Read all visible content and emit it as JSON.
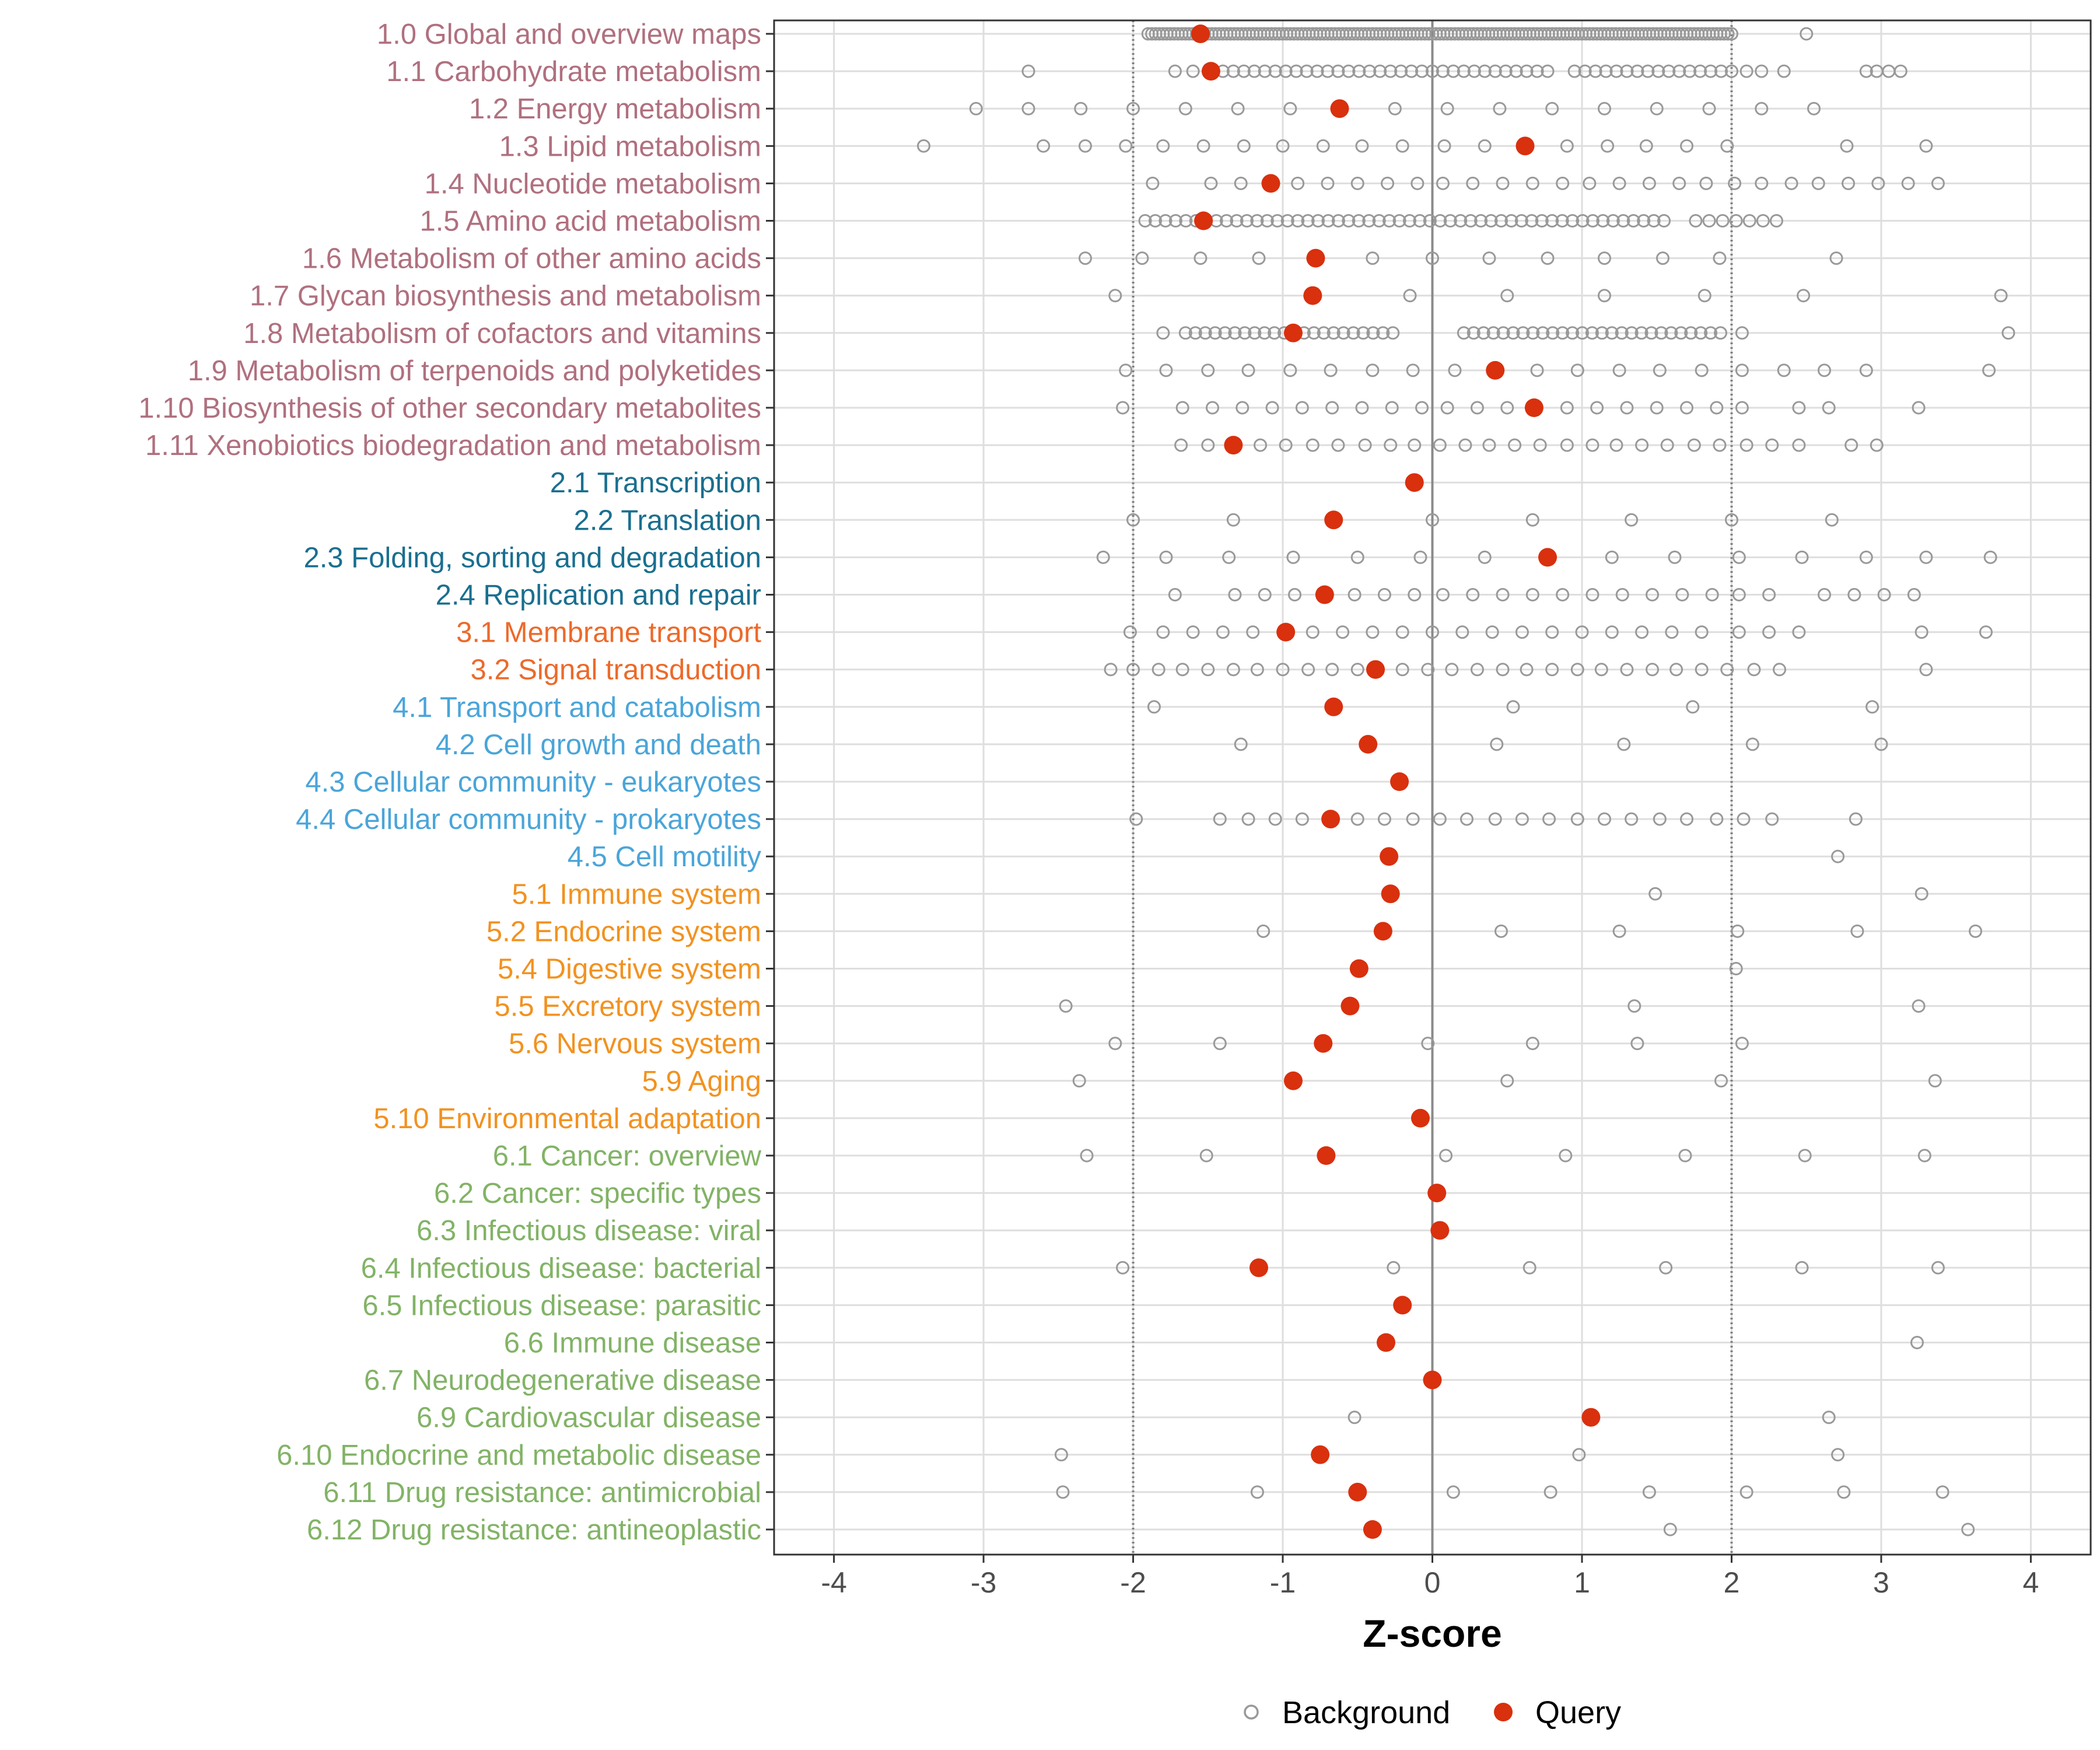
{
  "chart_data": {
    "type": "scatter",
    "xlabel": "Z-score",
    "xlim": [
      -4.4,
      4.4
    ],
    "xticks": [
      -4,
      -3,
      -2,
      -1,
      0,
      1,
      2,
      3,
      4
    ],
    "xtick_labels": [
      "-4",
      "-3",
      "-2",
      "-1",
      "0",
      "1",
      "2",
      "3",
      "4"
    ],
    "reference_lines": [
      -2,
      0,
      2
    ],
    "grid": true,
    "legend": {
      "position": "bottom",
      "items": [
        {
          "name": "Background",
          "shape": "open-circle",
          "color": "#999999"
        },
        {
          "name": "Query",
          "shape": "filled-circle",
          "color": "#d9300e"
        }
      ]
    },
    "group_colors": {
      "1": "#b0707f",
      "2": "#1a6f8f",
      "3": "#ec6a2a",
      "4": "#4aa5d9",
      "5": "#f29220",
      "6": "#82b366"
    },
    "categories": [
      {
        "label": "1.0 Global and overview maps",
        "group": "1",
        "query": -1.55,
        "background": {
          "dense": [
            [
              -1.9,
              2.0,
              0.025
            ]
          ],
          "points": [
            2.5
          ]
        }
      },
      {
        "label": "1.1 Carbohydrate metabolism",
        "group": "1",
        "query": -1.48,
        "background": {
          "dense": [
            [
              -1.4,
              0.8,
              0.07
            ],
            [
              0.95,
              2.0,
              0.07
            ]
          ],
          "points": [
            -2.7,
            -1.72,
            -1.6,
            2.1,
            2.2,
            2.35,
            2.9,
            2.97,
            3.05,
            3.13
          ]
        }
      },
      {
        "label": "1.2 Energy metabolism",
        "group": "1",
        "query": -0.62,
        "background": {
          "dense": [],
          "points": [
            -3.05,
            -2.7,
            -2.35,
            -2.0,
            -1.65,
            -1.3,
            -0.95,
            -0.25,
            0.1,
            0.45,
            0.8,
            1.15,
            1.5,
            1.85,
            2.2,
            2.55
          ]
        }
      },
      {
        "label": "1.3 Lipid metabolism",
        "group": "1",
        "query": 0.62,
        "background": {
          "dense": [],
          "points": [
            -3.4,
            -2.6,
            -2.32,
            -2.05,
            -1.8,
            -1.53,
            -1.26,
            -1.0,
            -0.73,
            -0.47,
            -0.2,
            0.08,
            0.35,
            0.9,
            1.17,
            1.43,
            1.7,
            1.97,
            2.77,
            3.3
          ]
        }
      },
      {
        "label": "1.4 Nucleotide metabolism",
        "group": "1",
        "query": -1.08,
        "background": {
          "dense": [],
          "points": [
            -1.87,
            -1.48,
            -1.28,
            -0.9,
            -0.7,
            -0.5,
            -0.3,
            -0.1,
            0.07,
            0.27,
            0.47,
            0.67,
            0.87,
            1.05,
            1.25,
            1.45,
            1.65,
            1.83,
            2.02,
            2.2,
            2.4,
            2.58,
            2.78,
            2.98,
            3.18,
            3.38
          ]
        }
      },
      {
        "label": "1.5 Amino acid metabolism",
        "group": "1",
        "query": -1.53,
        "background": {
          "dense": [
            [
              -1.92,
              1.6,
              0.068
            ],
            [
              1.76,
              2.3,
              0.09
            ]
          ],
          "points": []
        }
      },
      {
        "label": "1.6 Metabolism of other amino acids",
        "group": "1",
        "query": -0.78,
        "background": {
          "dense": [],
          "points": [
            -2.32,
            -1.94,
            -1.55,
            -1.16,
            -0.4,
            0.0,
            0.38,
            0.77,
            1.15,
            1.54,
            1.92,
            2.7
          ]
        }
      },
      {
        "label": "1.7 Glycan biosynthesis and metabolism",
        "group": "1",
        "query": -0.8,
        "background": {
          "dense": [],
          "points": [
            -2.12,
            -0.15,
            0.5,
            1.15,
            1.82,
            2.48,
            3.8
          ]
        }
      },
      {
        "label": "1.8 Metabolism of cofactors and vitamins",
        "group": "1",
        "query": -0.93,
        "background": {
          "dense": [
            [
              -1.65,
              -0.25,
              0.066
            ],
            [
              0.21,
              1.97,
              0.066
            ]
          ],
          "points": [
            -1.8,
            2.07,
            3.85
          ]
        }
      },
      {
        "label": "1.9 Metabolism of terpenoids and polyketides",
        "group": "1",
        "query": 0.42,
        "background": {
          "dense": [],
          "points": [
            -2.05,
            -1.78,
            -1.5,
            -1.23,
            -0.95,
            -0.68,
            -0.4,
            -0.13,
            0.15,
            0.7,
            0.97,
            1.25,
            1.52,
            1.8,
            2.07,
            2.35,
            2.62,
            2.9,
            3.72
          ]
        }
      },
      {
        "label": "1.10 Biosynthesis of other secondary metabolites",
        "group": "1",
        "query": 0.68,
        "background": {
          "dense": [],
          "points": [
            -2.07,
            -1.67,
            -1.47,
            -1.27,
            -1.07,
            -0.87,
            -0.67,
            -0.47,
            -0.27,
            -0.07,
            0.1,
            0.3,
            0.5,
            0.9,
            1.1,
            1.3,
            1.5,
            1.7,
            1.9,
            2.07,
            2.45,
            2.65,
            3.25
          ]
        }
      },
      {
        "label": "1.11 Xenobiotics biodegradation and metabolism",
        "group": "1",
        "query": -1.33,
        "background": {
          "dense": [],
          "points": [
            -1.68,
            -1.5,
            -1.15,
            -0.98,
            -0.8,
            -0.63,
            -0.45,
            -0.28,
            -0.12,
            0.05,
            0.22,
            0.38,
            0.55,
            0.72,
            0.9,
            1.07,
            1.23,
            1.4,
            1.57,
            1.75,
            1.92,
            2.1,
            2.27,
            2.45,
            2.8,
            2.97
          ]
        }
      },
      {
        "label": "2.1 Transcription",
        "group": "2",
        "query": -0.12,
        "background": {
          "dense": [],
          "points": []
        }
      },
      {
        "label": "2.2 Translation",
        "group": "2",
        "query": -0.66,
        "background": {
          "dense": [],
          "points": [
            -2.0,
            -1.33,
            0.0,
            0.67,
            1.33,
            2.0,
            2.67
          ]
        }
      },
      {
        "label": "2.3 Folding, sorting and degradation",
        "group": "2",
        "query": 0.77,
        "background": {
          "dense": [],
          "points": [
            -2.2,
            -1.78,
            -1.36,
            -0.93,
            -0.5,
            -0.08,
            0.35,
            1.2,
            1.62,
            2.05,
            2.47,
            2.9,
            3.3,
            3.73
          ]
        }
      },
      {
        "label": "2.4 Replication and repair",
        "group": "2",
        "query": -0.72,
        "background": {
          "dense": [],
          "points": [
            -1.72,
            -1.32,
            -1.12,
            -0.92,
            -0.52,
            -0.32,
            -0.12,
            0.07,
            0.27,
            0.47,
            0.67,
            0.87,
            1.07,
            1.27,
            1.47,
            1.67,
            1.87,
            2.05,
            2.25,
            2.62,
            2.82,
            3.02,
            3.22
          ]
        }
      },
      {
        "label": "3.1 Membrane transport",
        "group": "3",
        "query": -0.98,
        "background": {
          "dense": [],
          "points": [
            -2.02,
            -1.8,
            -1.6,
            -1.4,
            -1.2,
            -0.8,
            -0.6,
            -0.4,
            -0.2,
            0.0,
            0.2,
            0.4,
            0.6,
            0.8,
            1.0,
            1.2,
            1.4,
            1.6,
            1.8,
            2.05,
            2.25,
            2.45,
            3.27,
            3.7
          ]
        }
      },
      {
        "label": "3.2 Signal transduction",
        "group": "3",
        "query": -0.38,
        "background": {
          "dense": [],
          "points": [
            -2.15,
            -2.0,
            -1.83,
            -1.67,
            -1.5,
            -1.33,
            -1.17,
            -1.0,
            -0.83,
            -0.67,
            -0.5,
            -0.2,
            -0.03,
            0.13,
            0.3,
            0.47,
            0.63,
            0.8,
            0.97,
            1.13,
            1.3,
            1.47,
            1.63,
            1.8,
            1.97,
            2.15,
            2.32,
            3.3
          ]
        }
      },
      {
        "label": "4.1 Transport and catabolism",
        "group": "4",
        "query": -0.66,
        "background": {
          "dense": [],
          "points": [
            -1.86,
            0.54,
            1.74,
            2.94
          ]
        }
      },
      {
        "label": "4.2 Cell growth and death",
        "group": "4",
        "query": -0.43,
        "background": {
          "dense": [],
          "points": [
            -1.28,
            0.43,
            1.28,
            2.14,
            3.0
          ]
        }
      },
      {
        "label": "4.3 Cellular community - eukaryotes",
        "group": "4",
        "query": -0.22,
        "background": {
          "dense": [],
          "points": []
        }
      },
      {
        "label": "4.4 Cellular community - prokaryotes",
        "group": "4",
        "query": -0.68,
        "background": {
          "dense": [],
          "points": [
            -1.98,
            -1.42,
            -1.23,
            -1.05,
            -0.87,
            -0.5,
            -0.32,
            -0.13,
            0.05,
            0.23,
            0.42,
            0.6,
            0.78,
            0.97,
            1.15,
            1.33,
            1.52,
            1.7,
            1.9,
            2.08,
            2.27,
            2.83
          ]
        }
      },
      {
        "label": "4.5 Cell motility",
        "group": "4",
        "query": -0.29,
        "background": {
          "dense": [],
          "points": [
            2.71
          ]
        }
      },
      {
        "label": "5.1 Immune system",
        "group": "5",
        "query": -0.28,
        "background": {
          "dense": [],
          "points": [
            1.49,
            3.27
          ]
        }
      },
      {
        "label": "5.2 Endocrine system",
        "group": "5",
        "query": -0.33,
        "background": {
          "dense": [],
          "points": [
            -1.13,
            0.46,
            1.25,
            2.04,
            2.84,
            3.63
          ]
        }
      },
      {
        "label": "5.4 Digestive system",
        "group": "5",
        "query": -0.49,
        "background": {
          "dense": [],
          "points": [
            2.03
          ]
        }
      },
      {
        "label": "5.5 Excretory system",
        "group": "5",
        "query": -0.55,
        "background": {
          "dense": [],
          "points": [
            -2.45,
            1.35,
            3.25
          ]
        }
      },
      {
        "label": "5.6 Nervous system",
        "group": "5",
        "query": -0.73,
        "background": {
          "dense": [],
          "points": [
            -2.12,
            -1.42,
            -0.03,
            0.67,
            1.37,
            2.07
          ]
        }
      },
      {
        "label": "5.9 Aging",
        "group": "5",
        "query": -0.93,
        "background": {
          "dense": [],
          "points": [
            -2.36,
            0.5,
            1.93,
            3.36
          ]
        }
      },
      {
        "label": "5.10 Environmental adaptation",
        "group": "5",
        "query": -0.08,
        "background": {
          "dense": [],
          "points": []
        }
      },
      {
        "label": "6.1 Cancer: overview",
        "group": "6",
        "query": -0.71,
        "background": {
          "dense": [],
          "points": [
            -2.31,
            -1.51,
            0.09,
            0.89,
            1.69,
            2.49,
            3.29
          ]
        }
      },
      {
        "label": "6.2 Cancer: specific types",
        "group": "6",
        "query": 0.03,
        "background": {
          "dense": [],
          "points": []
        }
      },
      {
        "label": "6.3 Infectious disease: viral",
        "group": "6",
        "query": 0.05,
        "background": {
          "dense": [],
          "points": []
        }
      },
      {
        "label": "6.4 Infectious disease: bacterial",
        "group": "6",
        "query": -1.16,
        "background": {
          "dense": [],
          "points": [
            -2.07,
            -0.26,
            0.65,
            1.56,
            2.47,
            3.38
          ]
        }
      },
      {
        "label": "6.5 Infectious disease: parasitic",
        "group": "6",
        "query": -0.2,
        "background": {
          "dense": [],
          "points": []
        }
      },
      {
        "label": "6.6 Immune disease",
        "group": "6",
        "query": -0.31,
        "background": {
          "dense": [],
          "points": [
            3.24
          ]
        }
      },
      {
        "label": "6.7 Neurodegenerative disease",
        "group": "6",
        "query": 0.0,
        "background": {
          "dense": [],
          "points": []
        }
      },
      {
        "label": "6.9 Cardiovascular disease",
        "group": "6",
        "query": 1.06,
        "background": {
          "dense": [],
          "points": [
            -0.52,
            2.65
          ]
        }
      },
      {
        "label": "6.10 Endocrine and metabolic disease",
        "group": "6",
        "query": -0.75,
        "background": {
          "dense": [],
          "points": [
            -2.48,
            0.98,
            2.71
          ]
        }
      },
      {
        "label": "6.11 Drug resistance: antimicrobial",
        "group": "6",
        "query": -0.5,
        "background": {
          "dense": [],
          "points": [
            -2.47,
            -1.17,
            0.14,
            0.79,
            1.45,
            2.1,
            2.75,
            3.41
          ]
        }
      },
      {
        "label": "6.12 Drug resistance: antineoplastic",
        "group": "6",
        "query": -0.4,
        "background": {
          "dense": [],
          "points": [
            1.59,
            3.58
          ]
        }
      }
    ]
  }
}
